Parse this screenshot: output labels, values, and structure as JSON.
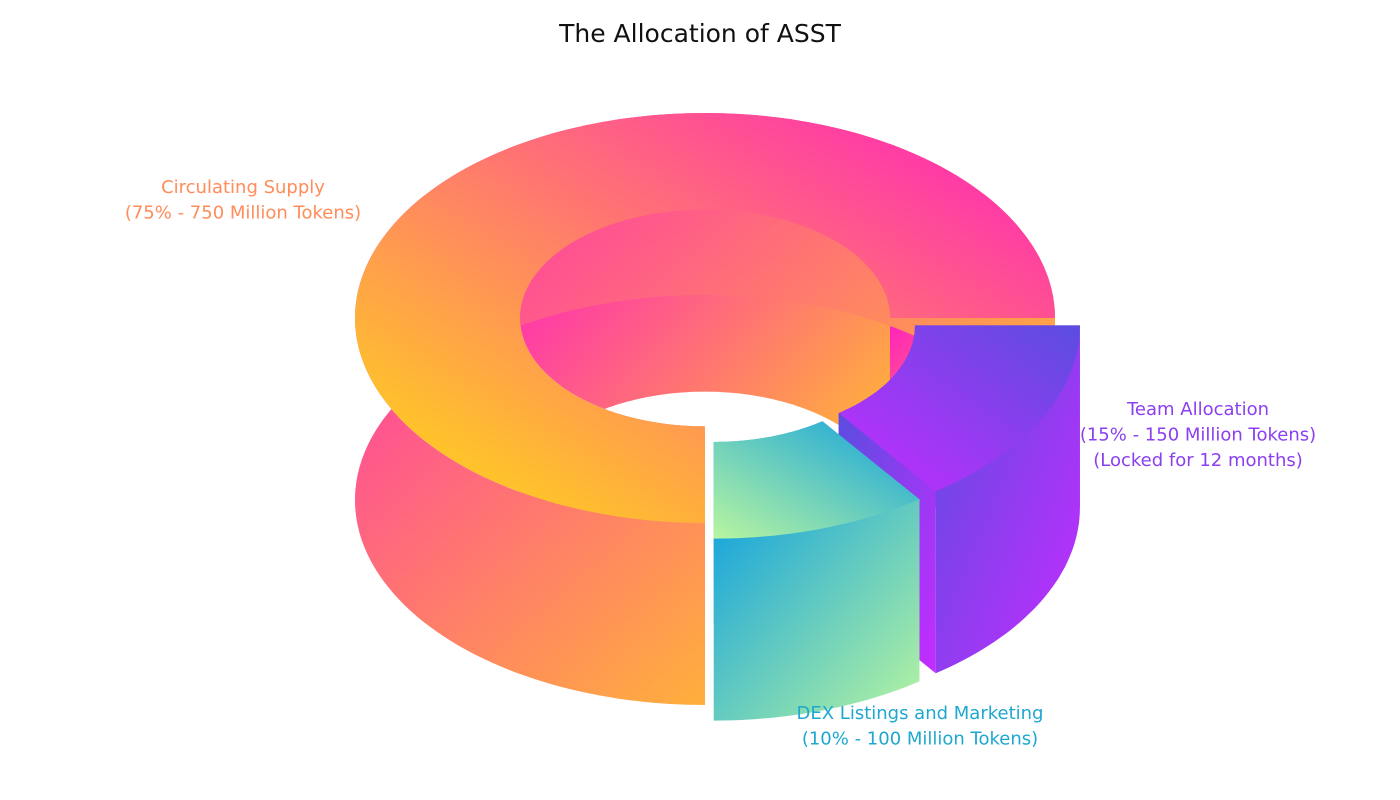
{
  "chart_data": {
    "type": "pie3d",
    "title": "The Allocation of ASST",
    "categories": [
      "Circulating Supply",
      "Team Allocation",
      "DEX Listings and Marketing"
    ],
    "values": [
      75,
      15,
      10
    ],
    "value_labels": [
      "(75% - 750 Million Tokens)",
      "(15% - 150 Million Tokens)",
      "(10% - 100 Million Tokens)"
    ],
    "annotation": "(Locked for 12 months)",
    "colors": [
      [
        "#ffe010",
        "#ff1fc0"
      ],
      [
        "#c52cff",
        "#5a4de0"
      ],
      [
        "#b8f5a0",
        "#0fa0e0"
      ]
    ],
    "label_colors": [
      "#ff8c5a",
      "#8b3ff0",
      "#1ea8d0"
    ]
  }
}
